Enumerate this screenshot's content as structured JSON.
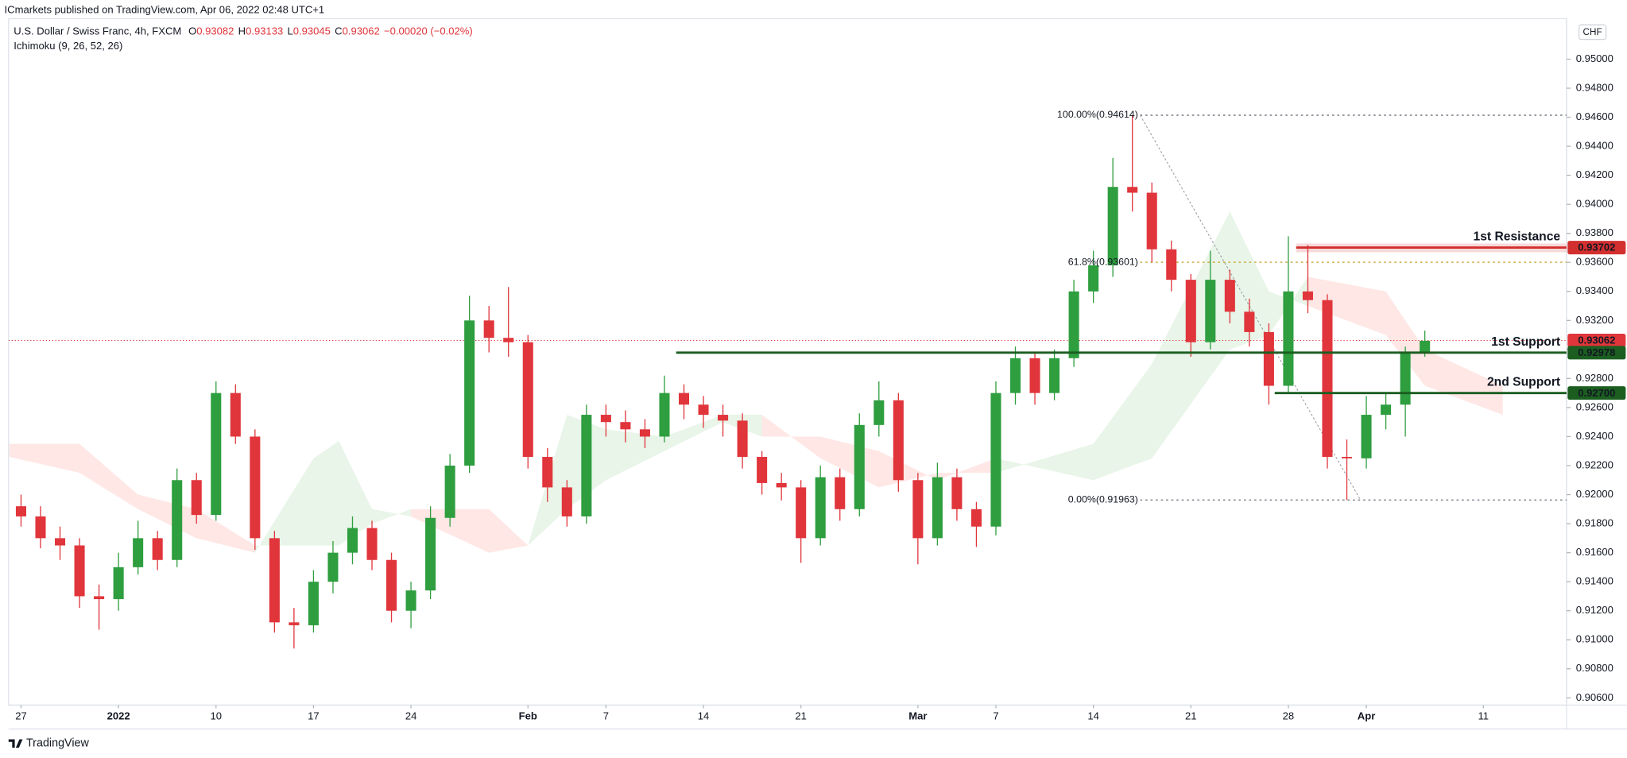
{
  "header": {
    "publisher": "ICmarkets published on TradingView.com, Apr 06, 2022 02:48 UTC+1"
  },
  "chart_data": {
    "type": "candlestick",
    "title": "U.S. Dollar / Swiss Franc, 4h, FXCM",
    "ohlc_legend": [
      {
        "label": "O",
        "value": "0.93082"
      },
      {
        "label": "H",
        "value": "0.93133"
      },
      {
        "label": "L",
        "value": "0.93045"
      },
      {
        "label": "C",
        "value": "0.93062"
      }
    ],
    "change": "−0.00020 (−0.02%)",
    "indicator": "Ichimoku (9, 26, 52, 26)",
    "currency": "CHF",
    "up_color": "#2e9e3f",
    "down_color": "#e0353b",
    "x": [
      0,
      1,
      2,
      3,
      4,
      5,
      6,
      7,
      8,
      9,
      10,
      11,
      12,
      13,
      14,
      15,
      16,
      17,
      18,
      19,
      20,
      21,
      22,
      23,
      24,
      25,
      26,
      27,
      28,
      29,
      30,
      31,
      32,
      33,
      34,
      35,
      36,
      37,
      38,
      39,
      40,
      41,
      42,
      43,
      44,
      45,
      46,
      47,
      48,
      49,
      50,
      51,
      52,
      53,
      54,
      55,
      56,
      57,
      58,
      59,
      60,
      61,
      62,
      63,
      64,
      65,
      66,
      67,
      68,
      69,
      70,
      71,
      72
    ],
    "open": [
      0.9192,
      0.9185,
      0.917,
      0.9165,
      0.913,
      0.9128,
      0.915,
      0.917,
      0.9155,
      0.921,
      0.9186,
      0.927,
      0.924,
      0.917,
      0.9112,
      0.911,
      0.914,
      0.916,
      0.9177,
      0.9155,
      0.912,
      0.9134,
      0.9184,
      0.922,
      0.932,
      0.9308,
      0.9305,
      0.9226,
      0.9205,
      0.9185,
      0.9255,
      0.925,
      0.9245,
      0.924,
      0.927,
      0.9262,
      0.9255,
      0.9251,
      0.9226,
      0.9208,
      0.9205,
      0.917,
      0.9212,
      0.919,
      0.9248,
      0.9265,
      0.921,
      0.917,
      0.9212,
      0.919,
      0.9178,
      0.927,
      0.9294,
      0.927,
      0.9294,
      0.934,
      0.9358,
      0.9412,
      0.9408,
      0.9369,
      0.9348,
      0.9305,
      0.9348,
      0.9326,
      0.9312,
      0.9275,
      0.934,
      0.9334,
      0.9226,
      0.9225,
      0.9255,
      0.9262,
      0.9298
    ],
    "high": [
      0.92,
      0.9192,
      0.9178,
      0.917,
      0.9138,
      0.916,
      0.9182,
      0.9175,
      0.9218,
      0.9215,
      0.9278,
      0.9276,
      0.9245,
      0.9175,
      0.9122,
      0.9148,
      0.9168,
      0.9185,
      0.9182,
      0.916,
      0.914,
      0.9192,
      0.9228,
      0.9337,
      0.933,
      0.9343,
      0.931,
      0.9232,
      0.921,
      0.9262,
      0.9262,
      0.9258,
      0.9252,
      0.9282,
      0.9276,
      0.9268,
      0.9262,
      0.9256,
      0.923,
      0.9215,
      0.921,
      0.922,
      0.9218,
      0.9256,
      0.9278,
      0.927,
      0.9215,
      0.9222,
      0.9218,
      0.9195,
      0.9278,
      0.9302,
      0.9298,
      0.93,
      0.9348,
      0.9368,
      0.9432,
      0.94614,
      0.9415,
      0.9375,
      0.9352,
      0.9368,
      0.9355,
      0.9335,
      0.9318,
      0.9378,
      0.9372,
      0.9338,
      0.9238,
      0.9268,
      0.927,
      0.9302,
      0.9313
    ],
    "low": [
      0.9178,
      0.9163,
      0.9155,
      0.9122,
      0.9107,
      0.912,
      0.9145,
      0.9148,
      0.915,
      0.918,
      0.9182,
      0.9235,
      0.9162,
      0.9105,
      0.9094,
      0.9105,
      0.9132,
      0.9152,
      0.9148,
      0.9112,
      0.9108,
      0.9128,
      0.9178,
      0.9215,
      0.9298,
      0.9295,
      0.9218,
      0.9195,
      0.9178,
      0.918,
      0.924,
      0.9236,
      0.9232,
      0.9236,
      0.9252,
      0.9246,
      0.924,
      0.9218,
      0.92,
      0.9196,
      0.9153,
      0.9165,
      0.9182,
      0.9185,
      0.924,
      0.9202,
      0.9152,
      0.9165,
      0.9182,
      0.9164,
      0.9172,
      0.9262,
      0.9262,
      0.9265,
      0.9288,
      0.9332,
      0.935,
      0.9395,
      0.936,
      0.934,
      0.9295,
      0.93,
      0.9318,
      0.9302,
      0.9262,
      0.927,
      0.9325,
      0.9218,
      0.91963,
      0.9218,
      0.9245,
      0.924,
      0.9295
    ],
    "close": [
      0.9185,
      0.917,
      0.9165,
      0.913,
      0.9128,
      0.915,
      0.917,
      0.9155,
      0.921,
      0.9186,
      0.927,
      0.924,
      0.917,
      0.9112,
      0.911,
      0.914,
      0.916,
      0.9177,
      0.9155,
      0.912,
      0.9134,
      0.9184,
      0.922,
      0.932,
      0.9308,
      0.9305,
      0.9226,
      0.9205,
      0.9185,
      0.9255,
      0.925,
      0.9245,
      0.924,
      0.927,
      0.9262,
      0.9255,
      0.9251,
      0.9226,
      0.9208,
      0.9205,
      0.917,
      0.9212,
      0.919,
      0.9248,
      0.9265,
      0.921,
      0.917,
      0.9212,
      0.919,
      0.9178,
      0.927,
      0.9294,
      0.927,
      0.9294,
      0.934,
      0.9358,
      0.9412,
      0.9408,
      0.9369,
      0.9348,
      0.9305,
      0.9348,
      0.9326,
      0.9312,
      0.9275,
      0.934,
      0.9334,
      0.9226,
      0.9225,
      0.9255,
      0.9262,
      0.9298,
      0.9306
    ],
    "ichimoku": {
      "x": [
        -0.6,
        3,
        6,
        9,
        12,
        15,
        16.3,
        18,
        20,
        24,
        26,
        28,
        30,
        33,
        36,
        38,
        41,
        44,
        47,
        50,
        55,
        58,
        62,
        64,
        66,
        70,
        72,
        76
      ],
      "span_a": [
        0.9226,
        0.9215,
        0.919,
        0.917,
        0.916,
        0.9225,
        0.9237,
        0.919,
        0.9185,
        0.916,
        0.9165,
        0.9255,
        0.9245,
        0.924,
        0.9255,
        0.9255,
        0.9225,
        0.9205,
        0.9215,
        0.9215,
        0.9235,
        0.929,
        0.9395,
        0.934,
        0.933,
        0.931,
        0.9275,
        0.9255
      ],
      "span_b": [
        0.9235,
        0.9235,
        0.92,
        0.919,
        0.9165,
        0.9165,
        0.9165,
        0.918,
        0.919,
        0.919,
        0.9165,
        0.919,
        0.921,
        0.923,
        0.925,
        0.924,
        0.924,
        0.923,
        0.921,
        0.9225,
        0.921,
        0.9225,
        0.93,
        0.931,
        0.935,
        0.934,
        0.93,
        0.9275
      ],
      "bull_color": "rgba(76,175,80,0.13)",
      "bear_color": "rgba(244,67,54,0.13)"
    },
    "xlim": [
      -0.64,
      79.27
    ],
    "ylim": [
      0.9055,
      0.95279
    ],
    "grid": false,
    "xticks": [
      {
        "value": 0,
        "label": "27"
      },
      {
        "value": 5,
        "label": "2022"
      },
      {
        "value": 10,
        "label": "10"
      },
      {
        "value": 15,
        "label": "17"
      },
      {
        "value": 20,
        "label": "24"
      },
      {
        "value": 26,
        "label": "Feb"
      },
      {
        "value": 30,
        "label": "7"
      },
      {
        "value": 35,
        "label": "14"
      },
      {
        "value": 40,
        "label": "21"
      },
      {
        "value": 46,
        "label": "Mar"
      },
      {
        "value": 50,
        "label": "7"
      },
      {
        "value": 55,
        "label": "14"
      },
      {
        "value": 60,
        "label": "21"
      },
      {
        "value": 65,
        "label": "28"
      },
      {
        "value": 69,
        "label": "Apr"
      },
      {
        "value": 75,
        "label": "11"
      }
    ],
    "yticks": [
      {
        "value": 0.906,
        "label": "0.90600"
      },
      {
        "value": 0.908,
        "label": "0.90800"
      },
      {
        "value": 0.91,
        "label": "0.91000"
      },
      {
        "value": 0.912,
        "label": "0.91200"
      },
      {
        "value": 0.914,
        "label": "0.91400"
      },
      {
        "value": 0.916,
        "label": "0.91600"
      },
      {
        "value": 0.918,
        "label": "0.91800"
      },
      {
        "value": 0.92,
        "label": "0.92000"
      },
      {
        "value": 0.922,
        "label": "0.92200"
      },
      {
        "value": 0.924,
        "label": "0.92400"
      },
      {
        "value": 0.926,
        "label": "0.92600"
      },
      {
        "value": 0.928,
        "label": "0.92800"
      },
      {
        "value": 0.93,
        "label": "0.93000"
      },
      {
        "value": 0.932,
        "label": "0.93200"
      },
      {
        "value": 0.934,
        "label": "0.93400"
      },
      {
        "value": 0.936,
        "label": "0.93600"
      },
      {
        "value": 0.938,
        "label": "0.93800"
      },
      {
        "value": 0.94,
        "label": "0.94000"
      },
      {
        "value": 0.942,
        "label": "0.94200"
      },
      {
        "value": 0.944,
        "label": "0.94400"
      },
      {
        "value": 0.946,
        "label": "0.94600"
      },
      {
        "value": 0.948,
        "label": "0.94800"
      },
      {
        "value": 0.95,
        "label": "0.95000"
      }
    ],
    "last_price": {
      "value": 0.93062,
      "label": "0.93062",
      "color": "#e0353b"
    },
    "levels": [
      {
        "name": "1st Resistance",
        "value": 0.93702,
        "label": "0.93702",
        "color": "#d32f2f",
        "start": 65.4,
        "zone": [
          0.9367,
          0.9373
        ]
      },
      {
        "name": "1st Support",
        "value": 0.92978,
        "label": "0.92978",
        "color": "#1b5e20",
        "start": 33.6
      },
      {
        "name": "2nd Support",
        "value": 0.927,
        "label": "0.92700",
        "color": "#1b5e20",
        "start": 64.3
      }
    ],
    "fib": {
      "from": {
        "x": 57.4,
        "y": 0.94614
      },
      "to": {
        "x": 68.7,
        "y": 0.91963
      },
      "levels": [
        {
          "label": "100.00%(0.94614)",
          "value": 0.94614,
          "color": "#787b86"
        },
        {
          "label": "61.8%(0.93601)",
          "value": 0.93601,
          "color": "#c9a227"
        },
        {
          "label": "0.00%(0.91963)",
          "value": 0.91963,
          "color": "#787b86"
        }
      ]
    }
  },
  "footer": {
    "brand": "TradingView"
  }
}
